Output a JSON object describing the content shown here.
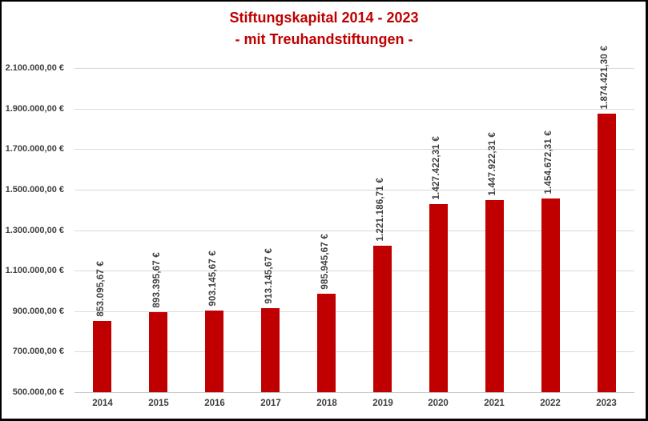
{
  "title": {
    "line1": "Stiftungskapital 2014 - 2023",
    "line2": "- mit Treuhandstiftungen -"
  },
  "colors": {
    "bar": "#c00000",
    "title_text": "#c00000",
    "axis_text": "#404040",
    "gridline": "#d9d9d9",
    "axis_line": "#c6c6c6",
    "frame_border": "#000000",
    "background": "#ffffff"
  },
  "chart_data": {
    "type": "bar",
    "title": "Stiftungskapital 2014 - 2023",
    "subtitle": "- mit Treuhandstiftungen -",
    "categories": [
      "2014",
      "2015",
      "2016",
      "2017",
      "2018",
      "2019",
      "2020",
      "2021",
      "2022",
      "2023"
    ],
    "values": [
      853095.67,
      893395.67,
      903145.67,
      913145.67,
      985945.67,
      1221186.71,
      1427422.31,
      1447922.31,
      1454672.31,
      1874421.3
    ],
    "value_labels": [
      "853.095,67 €",
      "893.395,67 €",
      "903.145,67 €",
      "913.145,67 €",
      "985.945,67 €",
      "1.221.186,71 €",
      "1.427.422,31 €",
      "1.447.922,31 €",
      "1.454.672,31 €",
      "1.874.421,30 €"
    ],
    "xlabel": "",
    "ylabel": "",
    "ylim": [
      500000,
      2100000
    ],
    "ytick_step": 200000,
    "yticks": [
      {
        "value": 500000,
        "label": "500.000,00 €"
      },
      {
        "value": 700000,
        "label": "700.000,00 €"
      },
      {
        "value": 900000,
        "label": "900.000,00 €"
      },
      {
        "value": 1100000,
        "label": "1.100.000,00 €"
      },
      {
        "value": 1300000,
        "label": "1.300.000,00 €"
      },
      {
        "value": 1500000,
        "label": "1.500.000,00 €"
      },
      {
        "value": 1700000,
        "label": "1.700.000,00 €"
      },
      {
        "value": 1900000,
        "label": "1.900.000,00 €"
      },
      {
        "value": 2100000,
        "label": "2.100.000,00 €"
      }
    ],
    "grid": true,
    "legend": false,
    "bar_color": "#c00000",
    "value_label_rotation": 90
  }
}
